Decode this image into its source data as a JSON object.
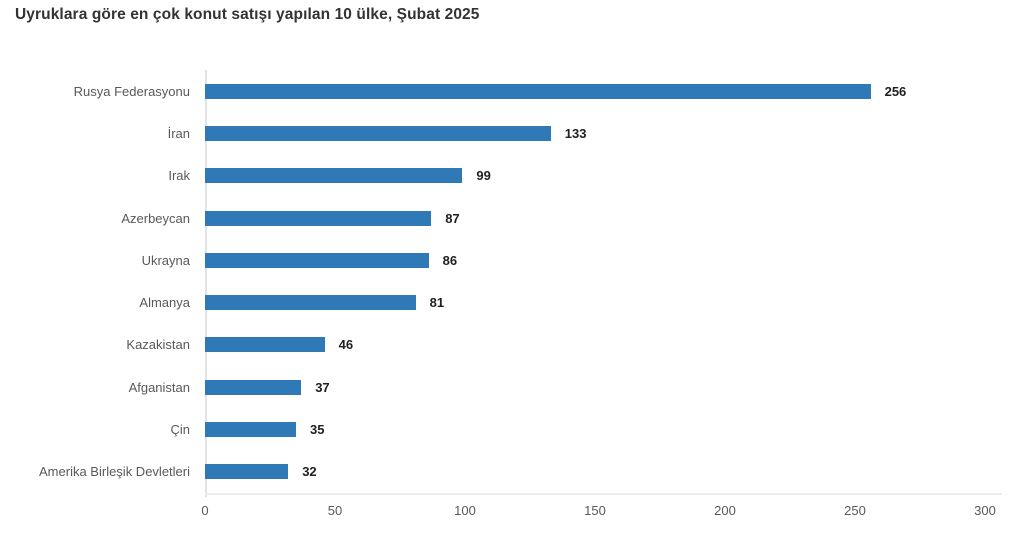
{
  "chart_data": {
    "type": "bar",
    "orientation": "horizontal",
    "title": "Uyruklara göre en çok konut satışı yapılan 10 ülke, Şubat 2025",
    "categories": [
      "Rusya Federasyonu",
      "İran",
      "Irak",
      "Azerbeycan",
      "Ukrayna",
      "Almanya",
      "Kazakistan",
      "Afganistan",
      "Çin",
      "Amerika Birleşik Devletleri"
    ],
    "values": [
      256,
      133,
      99,
      87,
      86,
      81,
      46,
      37,
      35,
      32
    ],
    "xlabel": "",
    "ylabel": "",
    "xticks": [
      0,
      50,
      100,
      150,
      200,
      250,
      300
    ],
    "xlim": [
      0,
      300
    ],
    "grid": false,
    "legend": false,
    "data_labels": true,
    "colors": {
      "bar": "#2F79B7",
      "title": "#333333",
      "category_label": "#595959",
      "value_label": "#1f1f1f",
      "tick_label": "#595959",
      "axis_line": "#e3e3e3",
      "background": "#ffffff"
    }
  }
}
